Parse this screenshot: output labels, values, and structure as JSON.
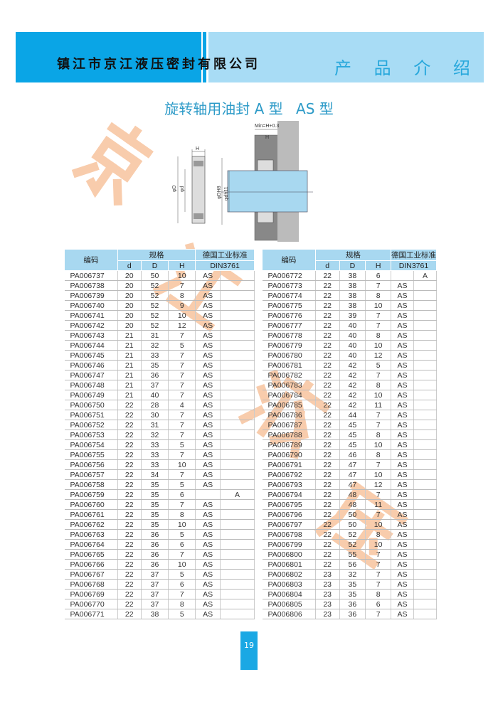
{
  "header": {
    "company": "镇江市京江液压密封有限公司",
    "section": "产 品 介 绍",
    "colors": {
      "dark_blue": "#0aa5e6",
      "light_blue": "#a8dcf5"
    }
  },
  "title": {
    "part1": "旋转轴用油封 A 型",
    "part2": "AS 型"
  },
  "diagram": {
    "labels": {
      "min": "Min=H+0.3",
      "h": "H",
      "D": "φD",
      "d": "φd",
      "DH8": "φDH8",
      "dh11": "φdh11"
    }
  },
  "watermark": {
    "chars": [
      "京",
      "江",
      "液",
      "压"
    ],
    "color": "#f4a46a"
  },
  "table_headers": {
    "code": "编码",
    "spec": "规格",
    "standard": "德国工业标准",
    "din": "DIN3761",
    "d": "d",
    "D": "D",
    "H": "H"
  },
  "left_table": [
    [
      "PA006737",
      "20",
      "50",
      "10",
      "AS",
      ""
    ],
    [
      "PA006738",
      "20",
      "52",
      "7",
      "AS",
      ""
    ],
    [
      "PA006739",
      "20",
      "52",
      "8",
      "AS",
      ""
    ],
    [
      "PA006740",
      "20",
      "52",
      "9",
      "AS",
      ""
    ],
    [
      "PA006741",
      "20",
      "52",
      "10",
      "AS",
      ""
    ],
    [
      "PA006742",
      "20",
      "52",
      "12",
      "AS",
      ""
    ],
    [
      "PA006743",
      "21",
      "31",
      "7",
      "AS",
      ""
    ],
    [
      "PA006744",
      "21",
      "32",
      "5",
      "AS",
      ""
    ],
    [
      "PA006745",
      "21",
      "33",
      "7",
      "AS",
      ""
    ],
    [
      "PA006746",
      "21",
      "35",
      "7",
      "AS",
      ""
    ],
    [
      "PA006747",
      "21",
      "36",
      "7",
      "AS",
      ""
    ],
    [
      "PA006748",
      "21",
      "37",
      "7",
      "AS",
      ""
    ],
    [
      "PA006749",
      "21",
      "40",
      "7",
      "AS",
      ""
    ],
    [
      "PA006750",
      "22",
      "28",
      "4",
      "AS",
      ""
    ],
    [
      "PA006751",
      "22",
      "30",
      "7",
      "AS",
      ""
    ],
    [
      "PA006752",
      "22",
      "31",
      "7",
      "AS",
      ""
    ],
    [
      "PA006753",
      "22",
      "32",
      "7",
      "AS",
      ""
    ],
    [
      "PA006754",
      "22",
      "33",
      "5",
      "AS",
      ""
    ],
    [
      "PA006755",
      "22",
      "33",
      "7",
      "AS",
      ""
    ],
    [
      "PA006756",
      "22",
      "33",
      "10",
      "AS",
      ""
    ],
    [
      "PA006757",
      "22",
      "34",
      "7",
      "AS",
      ""
    ],
    [
      "PA006758",
      "22",
      "35",
      "5",
      "AS",
      ""
    ],
    [
      "PA006759",
      "22",
      "35",
      "6",
      "",
      "A"
    ],
    [
      "PA006760",
      "22",
      "35",
      "7",
      "AS",
      ""
    ],
    [
      "PA006761",
      "22",
      "35",
      "8",
      "AS",
      ""
    ],
    [
      "PA006762",
      "22",
      "35",
      "10",
      "AS",
      ""
    ],
    [
      "PA006763",
      "22",
      "36",
      "5",
      "AS",
      ""
    ],
    [
      "PA006764",
      "22",
      "36",
      "6",
      "AS",
      ""
    ],
    [
      "PA006765",
      "22",
      "36",
      "7",
      "AS",
      ""
    ],
    [
      "PA006766",
      "22",
      "36",
      "10",
      "AS",
      ""
    ],
    [
      "PA006767",
      "22",
      "37",
      "5",
      "AS",
      ""
    ],
    [
      "PA006768",
      "22",
      "37",
      "6",
      "AS",
      ""
    ],
    [
      "PA006769",
      "22",
      "37",
      "7",
      "AS",
      ""
    ],
    [
      "PA006770",
      "22",
      "37",
      "8",
      "AS",
      ""
    ],
    [
      "PA006771",
      "22",
      "38",
      "5",
      "AS",
      ""
    ]
  ],
  "right_table": [
    [
      "PA006772",
      "22",
      "38",
      "6",
      "",
      "A"
    ],
    [
      "PA006773",
      "22",
      "38",
      "7",
      "AS",
      ""
    ],
    [
      "PA006774",
      "22",
      "38",
      "8",
      "AS",
      ""
    ],
    [
      "PA006775",
      "22",
      "38",
      "10",
      "AS",
      ""
    ],
    [
      "PA006776",
      "22",
      "39",
      "7",
      "AS",
      ""
    ],
    [
      "PA006777",
      "22",
      "40",
      "7",
      "AS",
      ""
    ],
    [
      "PA006778",
      "22",
      "40",
      "8",
      "AS",
      ""
    ],
    [
      "PA006779",
      "22",
      "40",
      "10",
      "AS",
      ""
    ],
    [
      "PA006780",
      "22",
      "40",
      "12",
      "AS",
      ""
    ],
    [
      "PA006781",
      "22",
      "42",
      "5",
      "AS",
      ""
    ],
    [
      "PA006782",
      "22",
      "42",
      "7",
      "AS",
      ""
    ],
    [
      "PA006783",
      "22",
      "42",
      "8",
      "AS",
      ""
    ],
    [
      "PA006784",
      "22",
      "42",
      "10",
      "AS",
      ""
    ],
    [
      "PA006785",
      "22",
      "42",
      "11",
      "AS",
      ""
    ],
    [
      "PA006786",
      "22",
      "44",
      "7",
      "AS",
      ""
    ],
    [
      "PA006787",
      "22",
      "45",
      "7",
      "AS",
      ""
    ],
    [
      "PA006788",
      "22",
      "45",
      "8",
      "AS",
      ""
    ],
    [
      "PA006789",
      "22",
      "45",
      "10",
      "AS",
      ""
    ],
    [
      "PA006790",
      "22",
      "46",
      "8",
      "AS",
      ""
    ],
    [
      "PA006791",
      "22",
      "47",
      "7",
      "AS",
      ""
    ],
    [
      "PA006792",
      "22",
      "47",
      "10",
      "AS",
      ""
    ],
    [
      "PA006793",
      "22",
      "47",
      "12",
      "AS",
      ""
    ],
    [
      "PA006794",
      "22",
      "48",
      "7",
      "AS",
      ""
    ],
    [
      "PA006795",
      "22",
      "48",
      "11",
      "AS",
      ""
    ],
    [
      "PA006796",
      "22",
      "50",
      "7",
      "AS",
      ""
    ],
    [
      "PA006797",
      "22",
      "50",
      "10",
      "AS",
      ""
    ],
    [
      "PA006798",
      "22",
      "52",
      "8",
      "AS",
      ""
    ],
    [
      "PA006799",
      "22",
      "52",
      "10",
      "AS",
      ""
    ],
    [
      "PA006800",
      "22",
      "55",
      "7",
      "AS",
      ""
    ],
    [
      "PA006801",
      "22",
      "56",
      "7",
      "AS",
      ""
    ],
    [
      "PA006802",
      "23",
      "32",
      "7",
      "AS",
      ""
    ],
    [
      "PA006803",
      "23",
      "35",
      "7",
      "AS",
      ""
    ],
    [
      "PA006804",
      "23",
      "35",
      "8",
      "AS",
      ""
    ],
    [
      "PA006805",
      "23",
      "36",
      "6",
      "AS",
      ""
    ],
    [
      "PA006806",
      "23",
      "36",
      "7",
      "AS",
      ""
    ]
  ],
  "page_number": "19"
}
